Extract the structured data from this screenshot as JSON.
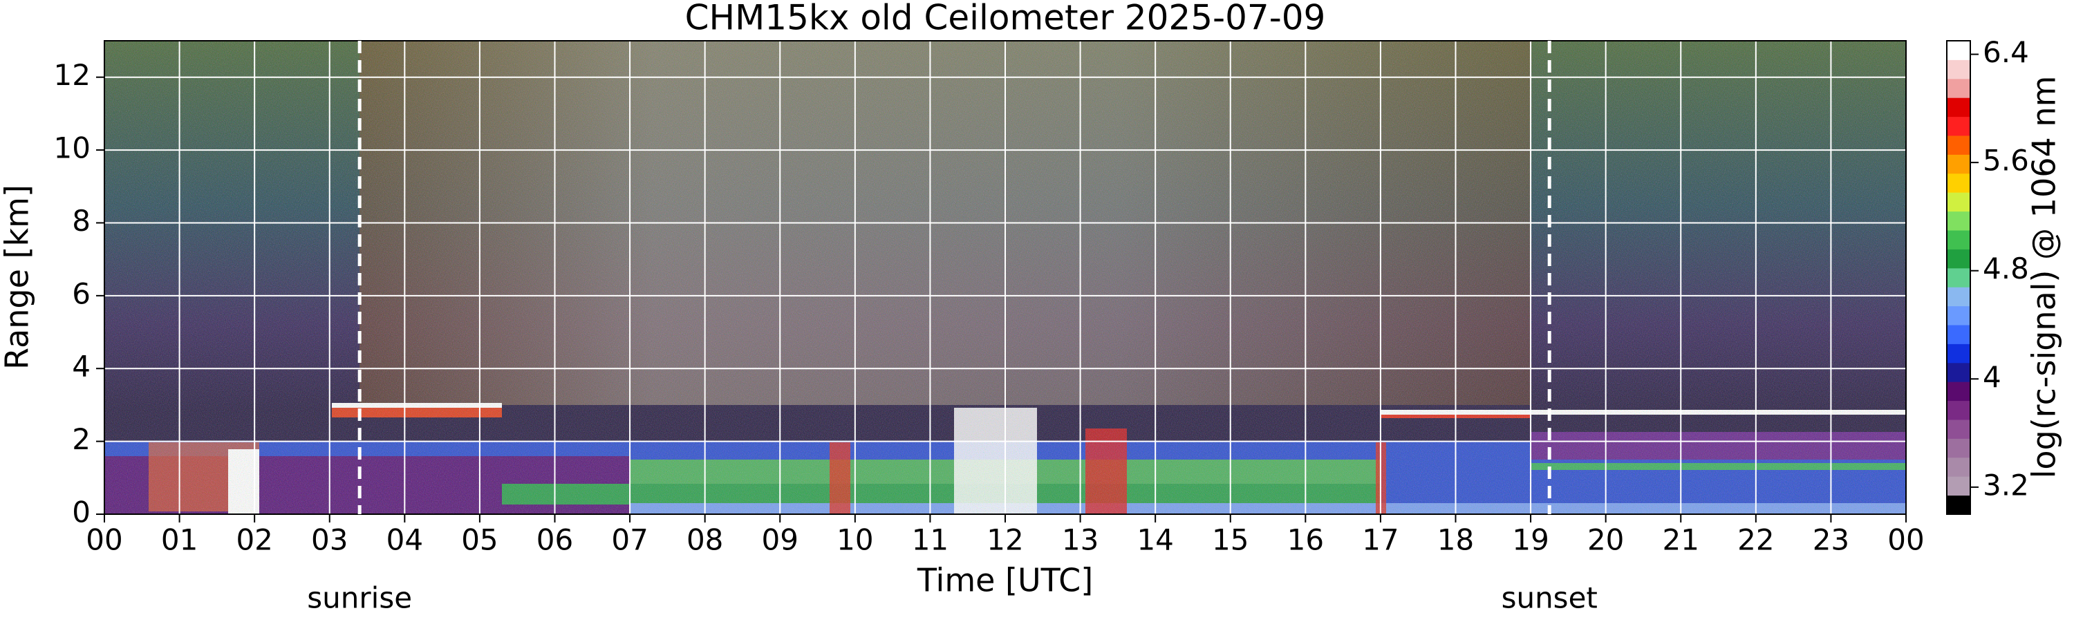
{
  "chart_data": {
    "type": "heatmap",
    "title": "CHM15kx old Ceilometer 2025-07-09",
    "x_label": "Time [UTC]",
    "y_label": "Range [km]",
    "colorbar_label": "log(rc-signal) @ 1064 nm",
    "xlim": [
      0,
      24
    ],
    "xticks": [
      {
        "value": 0,
        "label": "00"
      },
      {
        "value": 1,
        "label": "01"
      },
      {
        "value": 2,
        "label": "02"
      },
      {
        "value": 3,
        "label": "03"
      },
      {
        "value": 4,
        "label": "04"
      },
      {
        "value": 5,
        "label": "05"
      },
      {
        "value": 6,
        "label": "06"
      },
      {
        "value": 7,
        "label": "07"
      },
      {
        "value": 8,
        "label": "08"
      },
      {
        "value": 9,
        "label": "09"
      },
      {
        "value": 10,
        "label": "10"
      },
      {
        "value": 11,
        "label": "11"
      },
      {
        "value": 12,
        "label": "12"
      },
      {
        "value": 13,
        "label": "13"
      },
      {
        "value": 14,
        "label": "14"
      },
      {
        "value": 15,
        "label": "15"
      },
      {
        "value": 16,
        "label": "16"
      },
      {
        "value": 17,
        "label": "17"
      },
      {
        "value": 18,
        "label": "18"
      },
      {
        "value": 19,
        "label": "19"
      },
      {
        "value": 20,
        "label": "20"
      },
      {
        "value": 21,
        "label": "21"
      },
      {
        "value": 22,
        "label": "22"
      },
      {
        "value": 23,
        "label": "23"
      },
      {
        "value": 24,
        "label": "00"
      }
    ],
    "ylim": [
      0,
      13
    ],
    "yticks": [
      0,
      2,
      4,
      6,
      8,
      10,
      12
    ],
    "clim": [
      3.0,
      6.5
    ],
    "cticks": [
      3.2,
      4,
      4.8,
      5.6,
      6.4
    ],
    "colormap": [
      "#000000",
      "#b39db3",
      "#a98aa9",
      "#9d6f9f",
      "#8f4f95",
      "#7a2a85",
      "#5a0a6e",
      "#1a1a9a",
      "#1030e0",
      "#3a6aff",
      "#6a9aff",
      "#8ab8f0",
      "#60d090",
      "#20a040",
      "#40c050",
      "#80e060",
      "#d0f040",
      "#ffd000",
      "#ffa000",
      "#ff6000",
      "#ff2020",
      "#e00000",
      "#f0a0a0",
      "#f8d0d0",
      "#ffffff"
    ],
    "grid": true,
    "annotations": [
      {
        "text": "sunrise",
        "x": 3.4
      },
      {
        "text": "sunset",
        "x": 19.25
      }
    ]
  }
}
